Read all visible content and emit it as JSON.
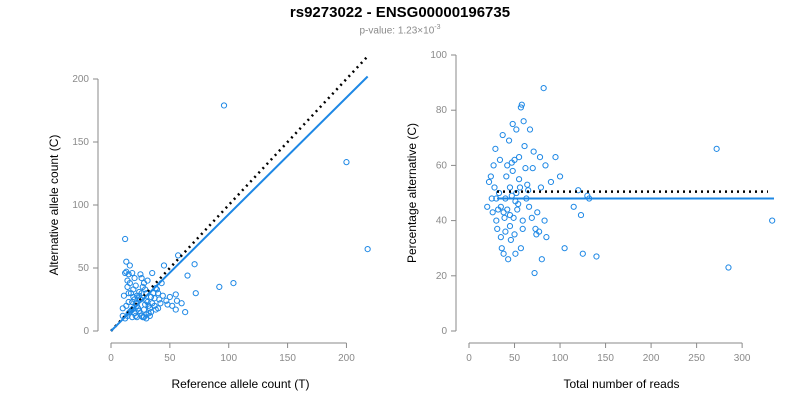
{
  "title": "rs9273022 - ENSG00000196735",
  "subtitle": {
    "prefix": "p-value: 1.23×10",
    "exponent": "-3"
  },
  "colors": {
    "points": "#1e88e5",
    "fit_line": "#1e88e5",
    "reference_line": "#000000",
    "axis": "#8a8a8a"
  },
  "chart_data": [
    {
      "type": "scatter",
      "xlabel": "Reference allele count (T)",
      "ylabel": "Alternative allele count (C)",
      "xlim": [
        0,
        220
      ],
      "ylim": [
        0,
        200
      ],
      "xticks": [
        0,
        50,
        100,
        150,
        200
      ],
      "yticks": [
        0,
        50,
        100,
        150,
        200
      ],
      "grid": false,
      "fit_line": {
        "x1": 0,
        "y1": 0,
        "x2": 218,
        "y2": 202
      },
      "reference_line": {
        "x1": 0,
        "y1": 0,
        "x2": 218,
        "y2": 218
      },
      "points": [
        [
          10,
          12
        ],
        [
          10,
          18
        ],
        [
          11,
          28
        ],
        [
          12,
          46
        ],
        [
          12,
          73
        ],
        [
          13,
          47
        ],
        [
          14,
          40
        ],
        [
          14,
          35
        ],
        [
          15,
          45
        ],
        [
          15,
          30
        ],
        [
          13,
          55
        ],
        [
          16,
          52
        ],
        [
          16,
          38
        ],
        [
          18,
          46
        ],
        [
          18,
          23
        ],
        [
          19,
          27
        ],
        [
          20,
          25
        ],
        [
          21,
          22
        ],
        [
          22,
          20
        ],
        [
          23,
          18
        ],
        [
          24,
          16
        ],
        [
          25,
          14
        ],
        [
          26,
          12
        ],
        [
          27,
          11
        ],
        [
          28,
          17
        ],
        [
          29,
          21
        ],
        [
          30,
          24
        ],
        [
          31,
          23
        ],
        [
          32,
          20
        ],
        [
          33,
          18
        ],
        [
          34,
          15
        ],
        [
          35,
          22
        ],
        [
          36,
          30
        ],
        [
          37,
          26
        ],
        [
          38,
          34
        ],
        [
          39,
          33
        ],
        [
          40,
          30
        ],
        [
          41,
          25
        ],
        [
          42,
          22
        ],
        [
          43,
          38
        ],
        [
          25,
          45
        ],
        [
          26,
          42
        ],
        [
          28,
          38
        ],
        [
          30,
          30
        ],
        [
          12,
          10
        ],
        [
          14,
          12
        ],
        [
          15,
          14
        ],
        [
          16,
          15
        ],
        [
          17,
          16
        ],
        [
          18,
          17
        ],
        [
          19,
          18
        ],
        [
          20,
          14
        ],
        [
          21,
          12
        ],
        [
          22,
          11
        ],
        [
          23,
          26
        ],
        [
          17,
          30
        ],
        [
          19,
          33
        ],
        [
          22,
          28
        ],
        [
          24,
          31
        ],
        [
          13,
          20
        ],
        [
          15,
          23
        ],
        [
          26,
          30
        ],
        [
          27,
          35
        ],
        [
          29,
          33
        ],
        [
          31,
          40
        ],
        [
          32,
          14
        ],
        [
          33,
          12
        ],
        [
          44,
          28
        ],
        [
          47,
          24
        ],
        [
          50,
          27
        ],
        [
          55,
          17
        ],
        [
          55,
          29
        ],
        [
          56,
          24
        ],
        [
          57,
          60
        ],
        [
          60,
          22
        ],
        [
          63,
          15
        ],
        [
          65,
          44
        ],
        [
          71,
          53
        ],
        [
          72,
          30
        ],
        [
          92,
          35
        ],
        [
          96,
          179
        ],
        [
          104,
          38
        ],
        [
          200,
          134
        ],
        [
          218,
          65
        ],
        [
          45,
          52
        ],
        [
          35,
          46
        ],
        [
          37,
          20
        ],
        [
          40,
          18
        ],
        [
          48,
          21
        ],
        [
          52,
          20
        ],
        [
          28,
          11
        ],
        [
          30,
          10
        ],
        [
          21,
          36
        ],
        [
          24,
          28
        ],
        [
          34,
          27
        ],
        [
          38,
          17
        ],
        [
          20,
          42
        ],
        [
          18,
          11
        ],
        [
          25,
          25
        ],
        [
          30,
          13
        ]
      ]
    },
    {
      "type": "scatter",
      "xlabel": "Total number of reads",
      "ylabel": "Percentage alternative (C)",
      "xlim": [
        0,
        335
      ],
      "ylim": [
        0,
        100
      ],
      "xticks": [
        0,
        50,
        100,
        150,
        200,
        250,
        300
      ],
      "yticks": [
        0,
        20,
        40,
        60,
        80,
        100
      ],
      "grid": false,
      "fit_line": {
        "y": 48
      },
      "reference_line": {
        "y": 50.5
      },
      "points": [
        [
          20,
          45
        ],
        [
          22,
          54
        ],
        [
          24,
          56
        ],
        [
          25,
          48
        ],
        [
          26,
          43
        ],
        [
          27,
          60
        ],
        [
          28,
          52
        ],
        [
          29,
          66
        ],
        [
          30,
          48
        ],
        [
          30,
          40
        ],
        [
          31,
          37
        ],
        [
          32,
          44
        ],
        [
          33,
          50
        ],
        [
          34,
          62
        ],
        [
          35,
          45
        ],
        [
          35,
          34
        ],
        [
          36,
          30
        ],
        [
          37,
          71
        ],
        [
          38,
          43
        ],
        [
          38,
          28
        ],
        [
          39,
          41
        ],
        [
          40,
          48
        ],
        [
          40,
          36
        ],
        [
          41,
          56
        ],
        [
          42,
          60
        ],
        [
          42,
          44
        ],
        [
          43,
          26
        ],
        [
          44,
          69
        ],
        [
          45,
          52
        ],
        [
          45,
          42
        ],
        [
          46,
          33
        ],
        [
          47,
          61
        ],
        [
          47,
          49
        ],
        [
          48,
          75
        ],
        [
          48,
          58
        ],
        [
          49,
          41
        ],
        [
          50,
          35
        ],
        [
          50,
          62
        ],
        [
          51,
          47
        ],
        [
          51,
          28
        ],
        [
          52,
          73
        ],
        [
          52,
          50
        ],
        [
          53,
          44
        ],
        [
          54,
          46
        ],
        [
          55,
          63
        ],
        [
          56,
          52
        ],
        [
          57,
          81
        ],
        [
          57,
          30
        ],
        [
          58,
          82
        ],
        [
          59,
          40
        ],
        [
          59,
          37
        ],
        [
          60,
          76
        ],
        [
          61,
          67
        ],
        [
          62,
          59
        ],
        [
          63,
          48
        ],
        [
          64,
          53
        ],
        [
          65,
          51
        ],
        [
          66,
          45
        ],
        [
          67,
          73
        ],
        [
          69,
          41
        ],
        [
          70,
          59
        ],
        [
          71,
          65
        ],
        [
          72,
          21
        ],
        [
          73,
          37
        ],
        [
          74,
          35
        ],
        [
          75,
          43
        ],
        [
          77,
          36
        ],
        [
          78,
          63
        ],
        [
          79,
          52
        ],
        [
          80,
          26
        ],
        [
          82,
          88
        ],
        [
          83,
          40
        ],
        [
          84,
          60
        ],
        [
          85,
          34
        ],
        [
          90,
          54
        ],
        [
          95,
          63
        ],
        [
          100,
          56
        ],
        [
          105,
          30
        ],
        [
          115,
          45
        ],
        [
          120,
          51
        ],
        [
          123,
          42
        ],
        [
          125,
          28
        ],
        [
          130,
          49
        ],
        [
          132,
          48
        ],
        [
          140,
          27
        ],
        [
          272,
          66
        ],
        [
          285,
          23
        ],
        [
          333,
          40
        ],
        [
          45,
          38
        ],
        [
          55,
          55
        ]
      ]
    }
  ]
}
